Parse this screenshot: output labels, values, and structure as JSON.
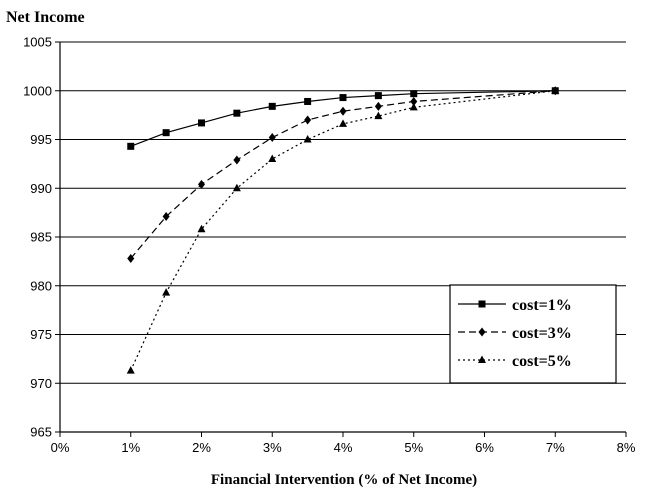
{
  "chart_data": {
    "type": "line",
    "title": "Net Income",
    "xlabel": "Financial  Intervention (% of Net Income)",
    "ylabel": "",
    "xlim": [
      0,
      8
    ],
    "ylim": [
      965,
      1005
    ],
    "x_ticks": [
      "0%",
      "1%",
      "2%",
      "3%",
      "4%",
      "5%",
      "6%",
      "7%",
      "8%"
    ],
    "y_ticks": [
      "965",
      "970",
      "975",
      "980",
      "985",
      "990",
      "995",
      "1000",
      "1005"
    ],
    "grid": "horizontal",
    "legend_position": "lower-right",
    "x": [
      1,
      1.5,
      2,
      2.5,
      3,
      3.5,
      4,
      4.5,
      5,
      7
    ],
    "series": [
      {
        "name": "cost=1%",
        "marker": "square",
        "line_style": "solid",
        "values": [
          994.3,
          995.7,
          996.7,
          997.7,
          998.4,
          998.9,
          999.3,
          999.5,
          999.7,
          1000.0
        ]
      },
      {
        "name": "cost=3%",
        "marker": "diamond",
        "line_style": "dashed",
        "values": [
          982.8,
          987.1,
          990.4,
          992.9,
          995.2,
          997.0,
          997.9,
          998.4,
          998.9,
          1000.0
        ]
      },
      {
        "name": "cost=5%",
        "marker": "triangle",
        "line_style": "dotted",
        "values": [
          971.3,
          979.3,
          985.8,
          990.0,
          993.0,
          995.0,
          996.6,
          997.4,
          998.3,
          1000.0
        ]
      }
    ]
  }
}
